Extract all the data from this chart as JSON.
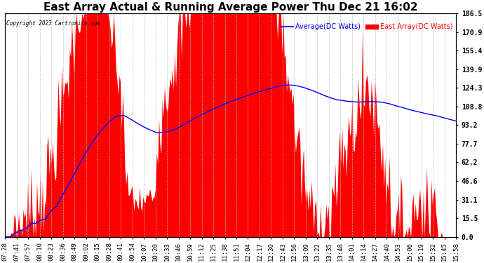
{
  "title": "East Array Actual & Running Average Power Thu Dec 21 16:02",
  "copyright": "Copyright 2023 Cartronics.com",
  "legend_avg": "Average(DC Watts)",
  "legend_east": "East Array(DC Watts)",
  "ylabel_right": [
    "186.5",
    "170.9",
    "155.4",
    "139.9",
    "124.3",
    "108.8",
    "93.2",
    "77.7",
    "62.2",
    "46.6",
    "31.1",
    "15.5",
    "0.0"
  ],
  "ymax": 186.5,
  "ymin": 0.0,
  "background_color": "#ffffff",
  "grid_color": "#bbbbbb",
  "title_fontsize": 11,
  "tick_label_fontsize": 6.5,
  "x_tick_labels": [
    "07:28",
    "07:41",
    "07:57",
    "08:10",
    "08:23",
    "08:36",
    "08:49",
    "09:02",
    "09:15",
    "09:28",
    "09:41",
    "09:54",
    "10:07",
    "10:20",
    "10:33",
    "10:46",
    "10:59",
    "11:12",
    "11:25",
    "11:38",
    "11:51",
    "12:04",
    "12:17",
    "12:30",
    "12:43",
    "12:56",
    "13:09",
    "13:22",
    "13:35",
    "13:48",
    "14:01",
    "14:14",
    "14:27",
    "14:40",
    "14:53",
    "15:06",
    "15:19",
    "15:32",
    "15:45",
    "15:58"
  ]
}
